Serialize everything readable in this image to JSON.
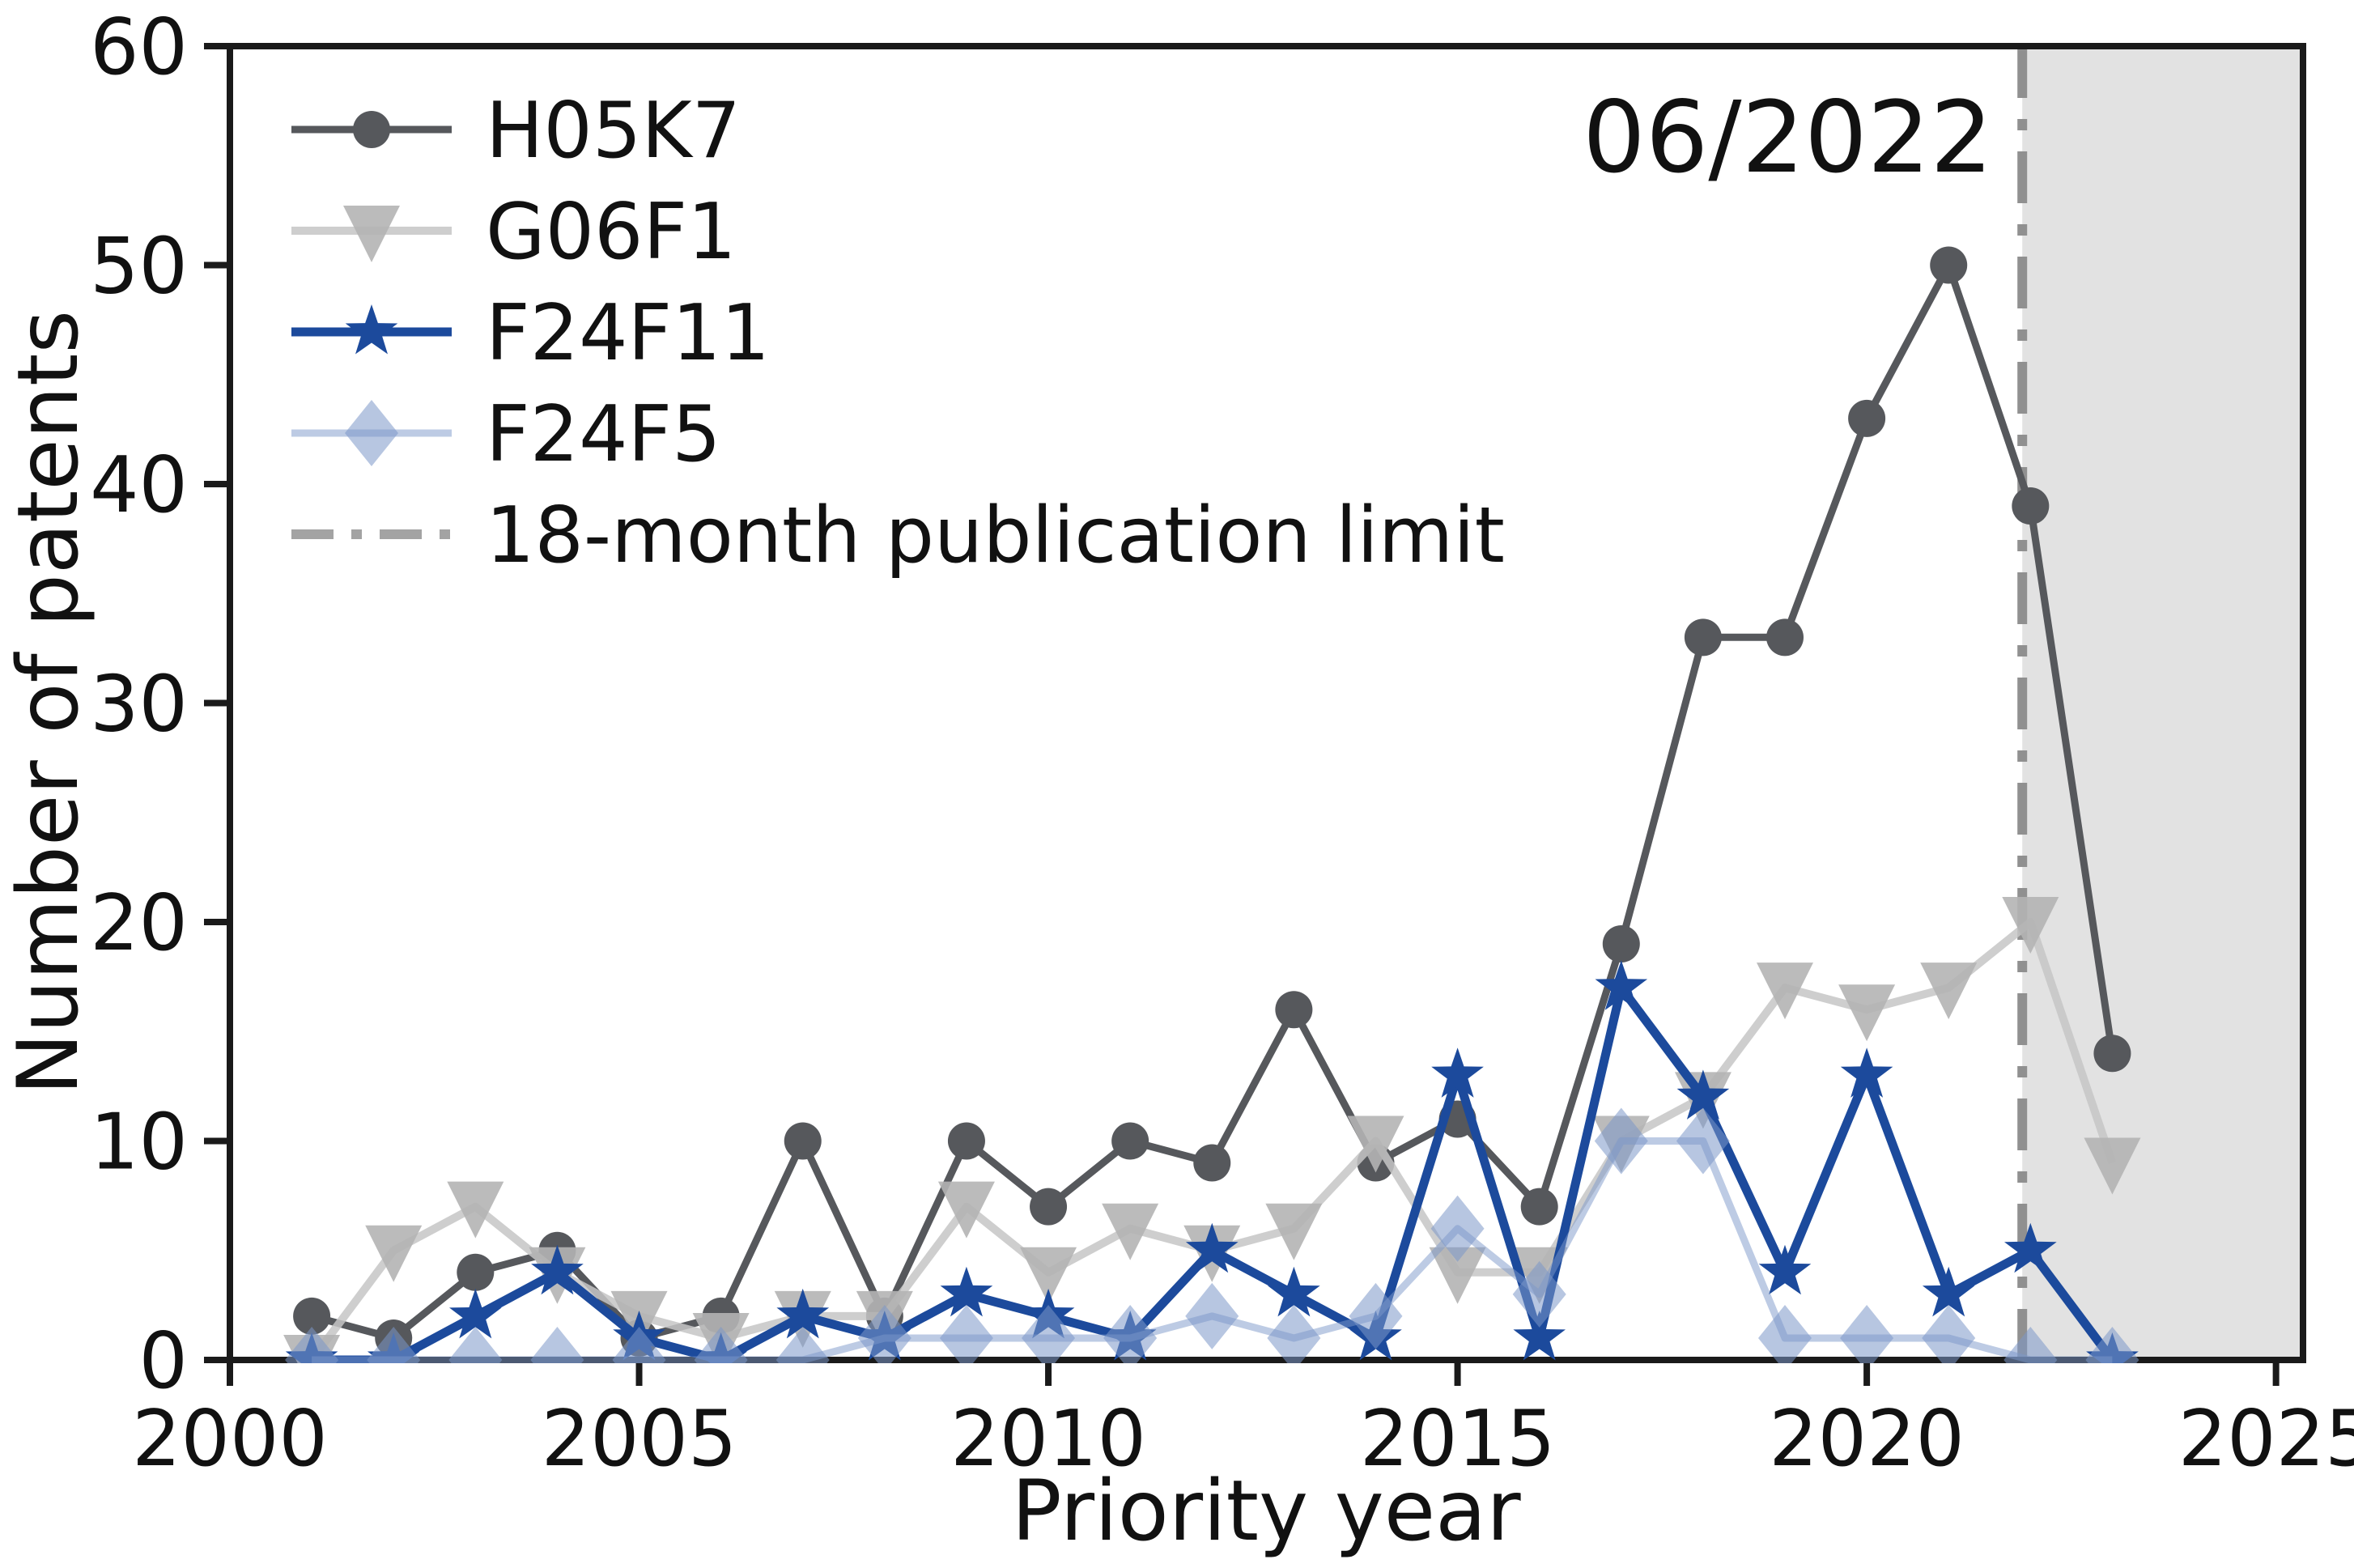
{
  "figure": {
    "annotation_label": "06/2022",
    "xlabel": "Priority year",
    "ylabel": "Number of patents"
  },
  "chart_data": {
    "type": "line",
    "title": "",
    "xlabel": "Priority year",
    "ylabel": "Number of patents",
    "xlim": [
      2000,
      2025.33
    ],
    "ylim": [
      0,
      60
    ],
    "xticks": [
      2000,
      2005,
      2010,
      2015,
      2020,
      2025
    ],
    "yticks": [
      0,
      10,
      20,
      30,
      40,
      50,
      60
    ],
    "grid": false,
    "legend_position": "upper-left",
    "annotation": "06/2022",
    "publication_limit_line": {
      "x_year": 2021.9,
      "label": "18-month publication limit",
      "color": "#909090",
      "legend_sample_color": "#a3a3a3",
      "style": "dash-dot"
    },
    "shaded_future_region": {
      "from_year": 2021.9,
      "to_year": 2025.33,
      "color": "#e2e2e2"
    },
    "x": [
      2001,
      2002,
      2003,
      2004,
      2005,
      2006,
      2007,
      2008,
      2009,
      2010,
      2011,
      2012,
      2013,
      2014,
      2015,
      2016,
      2017,
      2018,
      2019,
      2020,
      2021,
      2022,
      2023
    ],
    "series": [
      {
        "name": "H05K7",
        "marker": "circle",
        "color": "#56585c",
        "line_color": "#56585c",
        "marker_opacity": 1,
        "line_opacity": 1,
        "line_width": 9,
        "values": [
          2,
          1,
          4,
          5,
          1,
          2,
          10,
          2,
          10,
          7,
          10,
          9,
          16,
          9,
          11,
          7,
          19,
          33,
          33,
          43,
          50,
          39,
          14
        ]
      },
      {
        "name": "G06F1",
        "marker": "triangle-down",
        "color": "#b4b4b4",
        "line_color": "#c6c6c6",
        "marker_opacity": 0.9,
        "line_opacity": 0.85,
        "line_width": 10,
        "values": [
          0,
          5,
          7,
          4,
          2,
          1,
          2,
          2,
          7,
          4,
          6,
          5,
          6,
          10,
          4,
          4,
          10,
          12,
          17,
          16,
          17,
          20,
          9
        ]
      },
      {
        "name": "F24F11",
        "marker": "star",
        "color": "#1c4a9c",
        "line_color": "#1c4a9c",
        "marker_opacity": 1,
        "line_opacity": 1,
        "line_width": 11,
        "values": [
          0,
          0,
          2,
          4,
          1,
          0,
          2,
          1,
          3,
          2,
          1,
          5,
          3,
          1,
          13,
          1,
          17,
          12,
          4,
          13,
          3,
          5,
          0
        ]
      },
      {
        "name": "F24F5",
        "marker": "diamond",
        "color": "#7b97c9",
        "line_color": "#7b97c9",
        "marker_opacity": 0.55,
        "line_opacity": 0.5,
        "line_width": 9,
        "values": [
          0,
          0,
          0,
          0,
          0,
          0,
          0,
          1,
          1,
          1,
          1,
          2,
          1,
          2,
          6,
          3,
          10,
          10,
          1,
          1,
          1,
          0,
          0
        ]
      }
    ]
  }
}
